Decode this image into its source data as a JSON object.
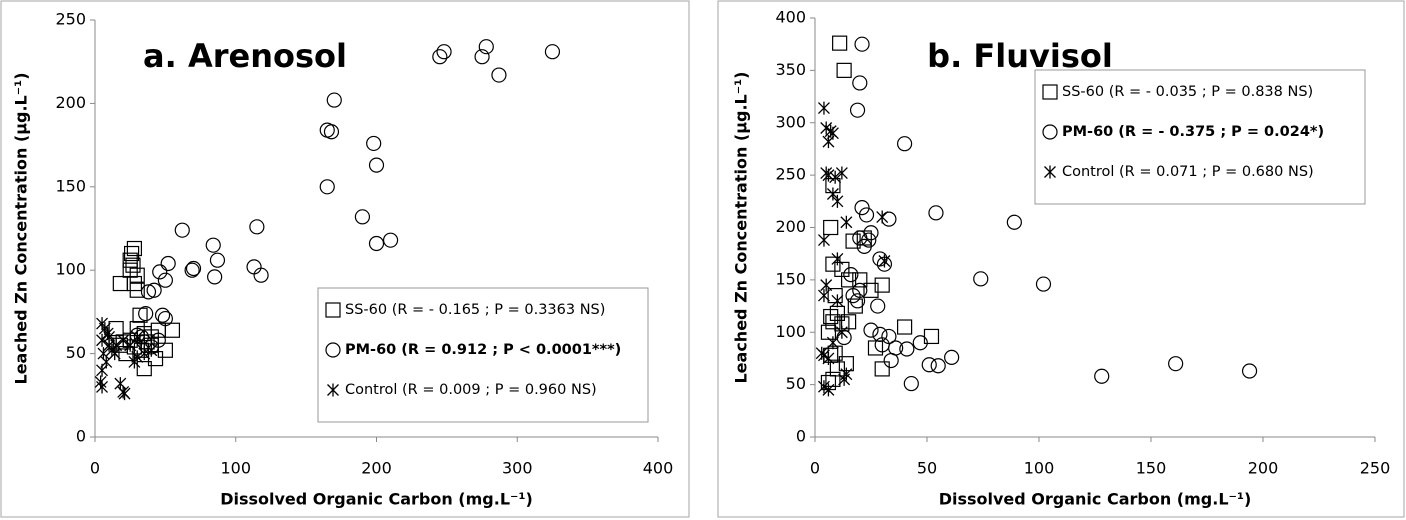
{
  "chart_data": [
    {
      "type": "scatter",
      "title": "a. Arenosol",
      "x_label": "Dissolved Organic Carbon (mg.L⁻¹)",
      "y_label": "Leached Zn Concentration (µg.L⁻¹)",
      "xlim": [
        0,
        400
      ],
      "xticks": [
        0,
        100,
        200,
        300,
        400
      ],
      "ylim": [
        0,
        250
      ],
      "yticks": [
        0,
        50,
        100,
        150,
        200,
        250
      ],
      "legend_position": "bottom-right",
      "series": [
        {
          "name": "SS-60 (R = - 0.165 ; P = 0.3363 NS)",
          "marker": "square",
          "color": "#000000",
          "bold": false,
          "x": [
            28,
            26,
            25,
            27,
            25,
            30,
            18,
            28,
            30,
            32,
            30,
            35,
            45,
            55,
            40,
            37,
            20,
            15,
            18,
            22,
            35,
            43,
            50,
            28,
            33,
            40,
            25
          ],
          "values": [
            113,
            110,
            106,
            103,
            100,
            97,
            92,
            92,
            88,
            73,
            65,
            62,
            64,
            64,
            60,
            57,
            57,
            65,
            55,
            50,
            41,
            47,
            52,
            54,
            52,
            55,
            58
          ]
        },
        {
          "name": "PM-60 (R = 0.912 ; P < 0.0001***)",
          "marker": "circle",
          "color": "#000000",
          "bold": true,
          "x": [
            325,
            278,
            248,
            245,
            275,
            287,
            170,
            165,
            168,
            198,
            200,
            165,
            190,
            200,
            210,
            115,
            62,
            84,
            113,
            118,
            87,
            85,
            70,
            69,
            52,
            46,
            50,
            38,
            42,
            48,
            50,
            36,
            33,
            40,
            35,
            45,
            30
          ],
          "values": [
            231,
            234,
            231,
            228,
            228,
            217,
            202,
            184,
            183,
            176,
            163,
            150,
            132,
            116,
            118,
            126,
            124,
            115,
            102,
            97,
            106,
            96,
            101,
            100,
            104,
            99,
            94,
            87,
            88,
            73,
            71,
            74,
            60,
            54,
            57,
            58,
            61
          ]
        },
        {
          "name": "Control (R = 0.009 ; P = 0.960 NS)",
          "marker": "asterisk",
          "color": "#000000",
          "bold": false,
          "x": [
            5,
            7,
            9,
            5,
            10,
            12,
            6,
            8,
            15,
            20,
            25,
            30,
            5,
            4,
            5,
            18,
            20,
            21,
            35,
            40,
            30,
            10,
            14,
            28
          ],
          "values": [
            68,
            65,
            62,
            58,
            55,
            52,
            50,
            45,
            55,
            58,
            55,
            60,
            40,
            33,
            30,
            32,
            27,
            26,
            50,
            52,
            48,
            60,
            50,
            45
          ]
        }
      ]
    },
    {
      "type": "scatter",
      "title": "b. Fluvisol",
      "x_label": "Dissolved Organic Carbon (mg.L⁻¹)",
      "y_label": "Leached Zn Concentration (µg.L⁻¹)",
      "xlim": [
        0,
        250
      ],
      "xticks": [
        0,
        50,
        100,
        150,
        200,
        250
      ],
      "ylim": [
        0,
        400
      ],
      "yticks": [
        0,
        50,
        100,
        150,
        200,
        250,
        300,
        350,
        400
      ],
      "legend_position": "top-right",
      "series": [
        {
          "name": "SS-60 (R = - 0.035 ; P = 0.838 NS)",
          "marker": "square",
          "color": "#000000",
          "bold": false,
          "x": [
            11,
            13,
            8,
            7,
            8,
            12,
            15,
            18,
            20,
            30,
            25,
            17,
            22,
            7,
            10,
            8,
            12,
            6,
            9,
            7,
            10,
            14,
            8,
            6,
            40,
            52,
            30,
            27,
            9,
            15
          ],
          "values": [
            376,
            350,
            240,
            200,
            165,
            160,
            150,
            125,
            150,
            145,
            140,
            187,
            190,
            115,
            118,
            110,
            108,
            100,
            80,
            78,
            65,
            70,
            55,
            52,
            105,
            96,
            65,
            85,
            135,
            110
          ]
        },
        {
          "name": "PM-60 (R = - 0.375 ; P = 0.024*)",
          "marker": "circle",
          "color": "#000000",
          "bold": true,
          "x": [
            21,
            20,
            19,
            40,
            54,
            89,
            33,
            21,
            23,
            25,
            24,
            22,
            20,
            29,
            31,
            20,
            17,
            19,
            28,
            25,
            29,
            33,
            36,
            41,
            30,
            34,
            47,
            51,
            55,
            61,
            43,
            74,
            102,
            128,
            161,
            194,
            16,
            13
          ],
          "values": [
            375,
            338,
            312,
            280,
            214,
            205,
            208,
            219,
            212,
            195,
            188,
            182,
            190,
            170,
            165,
            140,
            135,
            130,
            125,
            102,
            98,
            96,
            85,
            84,
            88,
            73,
            90,
            69,
            68,
            76,
            51,
            151,
            146,
            58,
            70,
            63,
            155,
            95
          ]
        },
        {
          "name": "Control (R = 0.071 ; P = 0.680 NS)",
          "marker": "asterisk",
          "color": "#000000",
          "bold": false,
          "x": [
            4,
            5,
            8,
            6,
            7,
            5,
            6,
            12,
            10,
            8,
            9,
            30,
            31,
            4,
            10,
            14,
            4,
            5,
            10,
            12,
            8,
            4,
            6,
            4,
            6,
            13,
            14,
            3
          ],
          "values": [
            314,
            295,
            290,
            282,
            292,
            252,
            250,
            252,
            225,
            232,
            248,
            210,
            168,
            188,
            170,
            205,
            135,
            145,
            130,
            100,
            90,
            78,
            75,
            48,
            45,
            55,
            60,
            80
          ]
        }
      ]
    }
  ]
}
